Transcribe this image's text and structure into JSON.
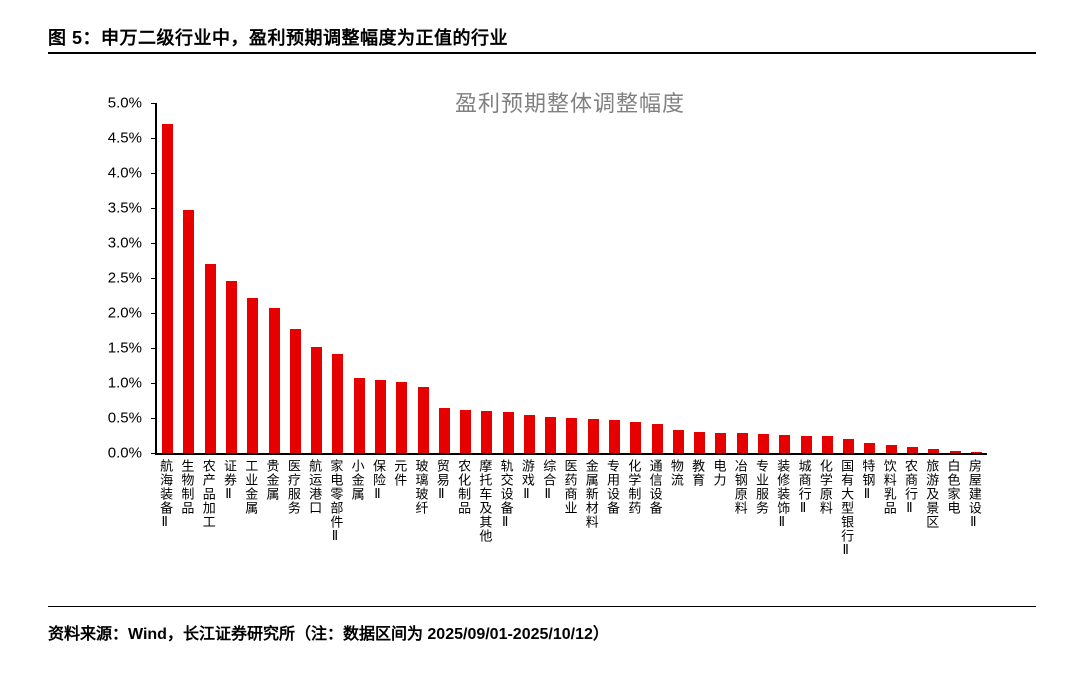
{
  "figure": {
    "caption": "图 5：申万二级行业中，盈利预期调整幅度为正值的行业",
    "source_note": "资料来源：Wind，长江证券研究所（注：数据区间为 2025/09/01-2025/10/12）"
  },
  "colors": {
    "bar": "#e60000",
    "chart_title": "#808080",
    "axis": "#000000"
  },
  "chart_data": {
    "type": "bar",
    "title": "盈利预期整体调整幅度",
    "xlabel": "",
    "ylabel": "",
    "ylim": [
      0,
      5
    ],
    "ytick_step": 0.5,
    "yticks_top_to_bottom": [
      "5.0%",
      "4.5%",
      "4.0%",
      "3.5%",
      "3.0%",
      "2.5%",
      "2.0%",
      "1.5%",
      "1.0%",
      "0.5%",
      "0.0%"
    ],
    "grid": false,
    "legend": "none",
    "unit": "%",
    "categories": [
      "航海装备Ⅱ",
      "生物制品",
      "农产品加工",
      "证券Ⅱ",
      "工业金属",
      "贵金属",
      "医疗服务",
      "航运港口",
      "家电零部件Ⅱ",
      "小金属",
      "保险Ⅱ",
      "元件",
      "玻璃玻纤",
      "贸易Ⅱ",
      "农化制品",
      "摩托车及其他",
      "轨交设备Ⅱ",
      "游戏Ⅱ",
      "综合Ⅱ",
      "医药商业",
      "金属新材料",
      "专用设备",
      "化学制药",
      "通信设备",
      "物流",
      "教育",
      "电力",
      "冶钢原料",
      "专业服务",
      "装修装饰Ⅱ",
      "城商行Ⅱ",
      "化学原料",
      "国有大型银行Ⅱ",
      "特钢Ⅱ",
      "饮料乳品",
      "农商行Ⅱ",
      "旅游及景区",
      "白色家电",
      "房屋建设Ⅱ"
    ],
    "values": [
      4.7,
      3.47,
      2.7,
      2.46,
      2.22,
      2.07,
      1.77,
      1.52,
      1.42,
      1.07,
      1.05,
      1.02,
      0.95,
      0.65,
      0.62,
      0.6,
      0.58,
      0.55,
      0.52,
      0.5,
      0.48,
      0.47,
      0.45,
      0.42,
      0.33,
      0.3,
      0.28,
      0.28,
      0.27,
      0.26,
      0.25,
      0.24,
      0.2,
      0.15,
      0.11,
      0.08,
      0.06,
      0.03,
      0.02
    ]
  }
}
